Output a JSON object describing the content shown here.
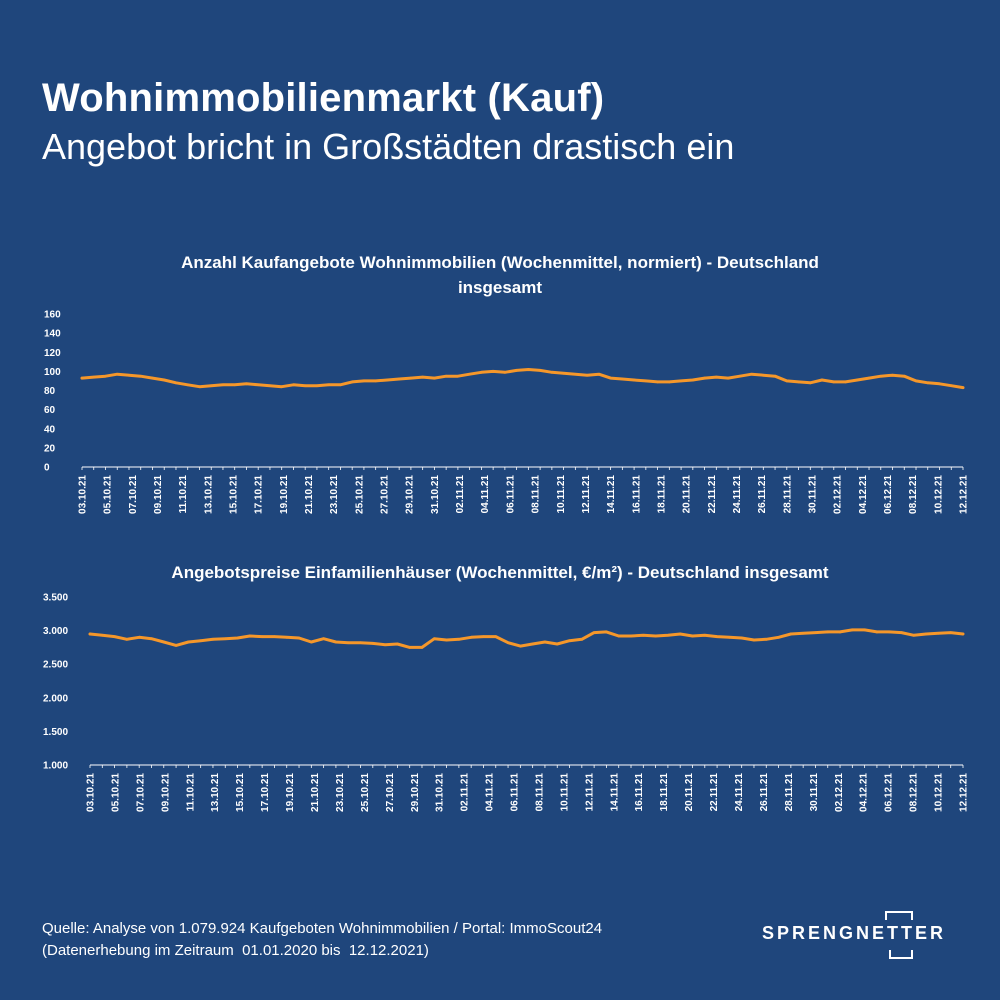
{
  "header": {
    "title": "Wohnimmobilienmarkt (Kauf)",
    "subtitle": "Angebot bricht in Großstädten drastisch ein"
  },
  "chart_data": [
    {
      "type": "line",
      "title_lines": [
        "Anzahl Kaufangebote Wohnimmobilien (Wochenmittel, normiert) - Deutschland",
        "insgesamt"
      ],
      "y_ticks": [
        "0",
        "20",
        "40",
        "60",
        "80",
        "100",
        "120",
        "140",
        "160"
      ],
      "ylim": [
        0,
        160
      ],
      "x_labels": [
        "03.10.21",
        "05.10.21",
        "07.10.21",
        "09.10.21",
        "11.10.21",
        "13.10.21",
        "15.10.21",
        "17.10.21",
        "19.10.21",
        "21.10.21",
        "23.10.21",
        "25.10.21",
        "27.10.21",
        "29.10.21",
        "31.10.21",
        "02.11.21",
        "04.11.21",
        "06.11.21",
        "08.11.21",
        "10.11.21",
        "12.11.21",
        "14.11.21",
        "16.11.21",
        "18.11.21",
        "20.11.21",
        "22.11.21",
        "24.11.21",
        "26.11.21",
        "28.11.21",
        "30.11.21",
        "02.12.21",
        "04.12.21",
        "06.12.21",
        "08.12.21",
        "10.12.21",
        "12.12.21"
      ],
      "values": [
        93,
        94,
        95,
        97,
        96,
        95,
        93,
        91,
        88,
        86,
        84,
        85,
        86,
        86,
        87,
        86,
        85,
        84,
        86,
        85,
        85,
        86,
        86,
        89,
        90,
        90,
        91,
        92,
        93,
        94,
        93,
        95,
        95,
        97,
        99,
        100,
        99,
        101,
        102,
        101,
        99,
        98,
        97,
        96,
        97,
        93,
        92,
        91,
        90,
        89,
        89,
        90,
        91,
        93,
        94,
        93,
        95,
        97,
        96,
        95,
        90,
        89,
        88,
        91,
        89,
        89,
        91,
        93,
        95,
        96,
        95,
        90,
        88,
        87,
        85,
        83
      ],
      "grid": false,
      "color": "#f5972a"
    },
    {
      "type": "line",
      "title_lines": [
        "Angebotspreise Einfamilienhäuser (Wochenmittel, €/m²) - Deutschland insgesamt"
      ],
      "y_ticks": [
        "1.000",
        "1.500",
        "2.000",
        "2.500",
        "3.000",
        "3.500"
      ],
      "ylim": [
        1000,
        3500
      ],
      "x_labels": [
        "03.10.21",
        "05.10.21",
        "07.10.21",
        "09.10.21",
        "11.10.21",
        "13.10.21",
        "15.10.21",
        "17.10.21",
        "19.10.21",
        "21.10.21",
        "23.10.21",
        "25.10.21",
        "27.10.21",
        "29.10.21",
        "31.10.21",
        "02.11.21",
        "04.11.21",
        "06.11.21",
        "08.11.21",
        "10.11.21",
        "12.11.21",
        "14.11.21",
        "16.11.21",
        "18.11.21",
        "20.11.21",
        "22.11.21",
        "24.11.21",
        "26.11.21",
        "28.11.21",
        "30.11.21",
        "02.12.21",
        "04.12.21",
        "06.12.21",
        "08.12.21",
        "10.12.21",
        "12.12.21"
      ],
      "values": [
        2950,
        2930,
        2910,
        2870,
        2900,
        2880,
        2830,
        2780,
        2830,
        2850,
        2870,
        2880,
        2890,
        2920,
        2910,
        2910,
        2900,
        2890,
        2830,
        2880,
        2830,
        2820,
        2820,
        2810,
        2790,
        2800,
        2750,
        2750,
        2880,
        2860,
        2870,
        2900,
        2910,
        2910,
        2820,
        2770,
        2800,
        2830,
        2800,
        2850,
        2870,
        2970,
        2980,
        2920,
        2920,
        2930,
        2920,
        2930,
        2950,
        2920,
        2930,
        2910,
        2900,
        2890,
        2860,
        2870,
        2900,
        2950,
        2960,
        2970,
        2980,
        2980,
        3010,
        3010,
        2980,
        2980,
        2970,
        2930,
        2950,
        2960,
        2970,
        2950
      ],
      "grid": false,
      "color": "#f5972a"
    }
  ],
  "footer": {
    "source_line1": "Quelle: Analyse von 1.079.924 Kaufgeboten Wohnimmobilien / Portal: ImmoScout24",
    "source_line2": "(Datenerhebung im Zeitraum  01.01.2020 bis  12.12.2021)",
    "logo_text": "SPRENGNETTER"
  }
}
